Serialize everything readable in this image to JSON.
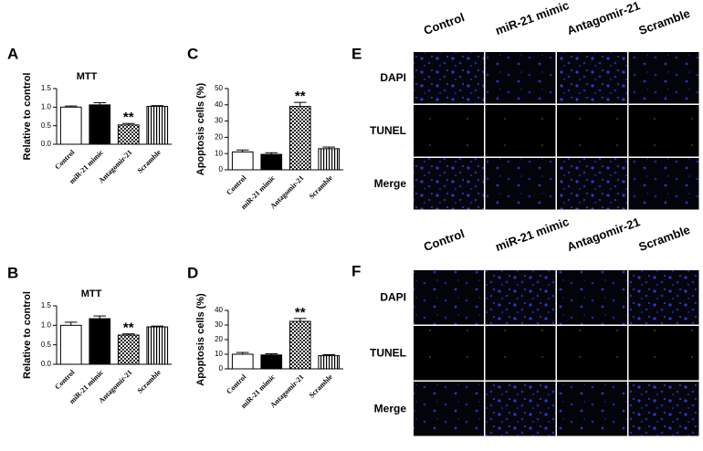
{
  "chart_data": [
    {
      "type": "bar",
      "panel": "A",
      "title": "MTT",
      "y_label": "Relative to control",
      "categories": [
        "Control",
        "miR-21 mimic",
        "Antagomir-21",
        "Scramble"
      ],
      "values": [
        1.0,
        1.06,
        0.52,
        1.02
      ],
      "errors": [
        0.03,
        0.06,
        0.04,
        0.02
      ],
      "annotations": [
        null,
        null,
        "**",
        null
      ],
      "fills": [
        "white",
        "black",
        "checker",
        "stripes"
      ],
      "ylim": [
        0,
        1.5
      ],
      "yticks": [
        {
          "value": 0,
          "label": "0.0"
        },
        {
          "value": 0.5,
          "label": "0.5"
        },
        {
          "value": 1,
          "label": "1.0"
        },
        {
          "value": 1.5,
          "label": "1.5"
        }
      ]
    },
    {
      "type": "bar",
      "panel": "B",
      "title": "MTT",
      "y_label": "Relative to control",
      "categories": [
        "Control",
        "miR-21 mimic",
        "Antagomir-21",
        "Scramble"
      ],
      "values": [
        1.0,
        1.17,
        0.75,
        0.96
      ],
      "errors": [
        0.08,
        0.07,
        0.03,
        0.02
      ],
      "annotations": [
        null,
        null,
        "**",
        null
      ],
      "fills": [
        "white",
        "black",
        "checker",
        "stripes"
      ],
      "ylim": [
        0,
        1.5
      ],
      "yticks": [
        {
          "value": 0,
          "label": "0.0"
        },
        {
          "value": 0.5,
          "label": "0.5"
        },
        {
          "value": 1,
          "label": "1.0"
        },
        {
          "value": 1.5,
          "label": "1.5"
        }
      ]
    },
    {
      "type": "bar",
      "panel": "C",
      "y_label": "Apoptosis cells (%)",
      "categories": [
        "Control",
        "miR-21 mimic",
        "Antagomir-21",
        "Scramble"
      ],
      "values": [
        11,
        9.5,
        39,
        13
      ],
      "errors": [
        1.2,
        1,
        2.5,
        1
      ],
      "annotations": [
        null,
        null,
        "**",
        null
      ],
      "fills": [
        "white",
        "black",
        "checker",
        "stripes"
      ],
      "ylim": [
        0,
        50
      ],
      "yticks": [
        0,
        10,
        20,
        30,
        40,
        50
      ]
    },
    {
      "type": "bar",
      "panel": "D",
      "y_label": "Apoptosis cells (%)",
      "categories": [
        "Control",
        "miR-21 mimic",
        "Antagomir-21",
        "Scramble"
      ],
      "values": [
        10,
        9.5,
        32.5,
        9
      ],
      "errors": [
        1.2,
        0.8,
        2,
        0.7
      ],
      "annotations": [
        null,
        null,
        "**",
        null
      ],
      "fills": [
        "white",
        "black",
        "checker",
        "stripes"
      ],
      "ylim": [
        0,
        40
      ],
      "yticks": [
        0,
        10,
        20,
        30,
        40
      ]
    }
  ],
  "image_panels": [
    {
      "letter": "E",
      "columns": [
        "Control",
        "miR-21 mimic",
        "Antagomir-21",
        "Scramble"
      ],
      "rows": [
        "DAPI",
        "TUNEL",
        "Merge"
      ]
    },
    {
      "letter": "F",
      "columns": [
        "Control",
        "miR-21 mimic",
        "Antagomir-21",
        "Scramble"
      ],
      "rows": [
        "DAPI",
        "TUNEL",
        "Merge"
      ]
    }
  ]
}
